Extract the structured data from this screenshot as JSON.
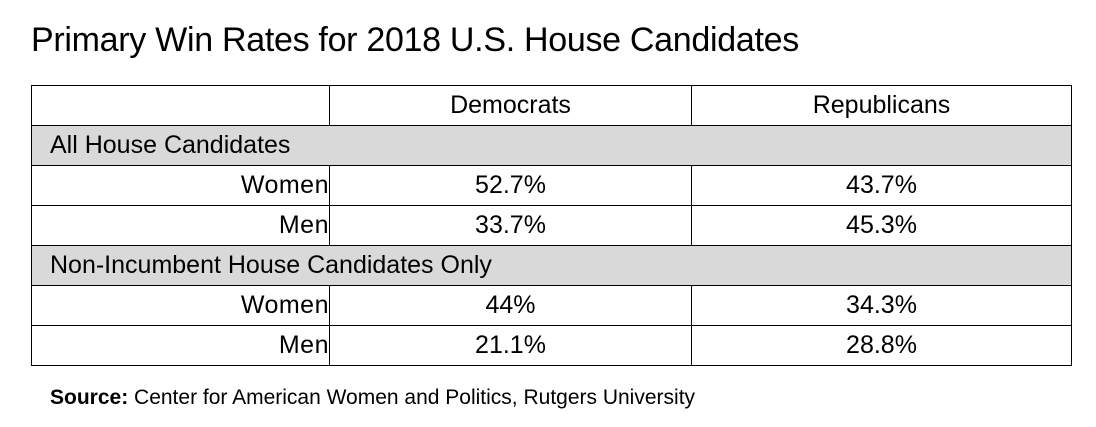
{
  "chart_data": {
    "type": "table",
    "title": "Primary Win Rates for 2018 U.S. House Candidates",
    "columns": [
      "",
      "Democrats",
      "Republicans"
    ],
    "sections": [
      {
        "label": "All House Candidates",
        "rows": [
          {
            "label": "Women",
            "values": [
              "52.7%",
              "43.7%"
            ]
          },
          {
            "label": "Men",
            "values": [
              "33.7%",
              "45.3%"
            ]
          }
        ]
      },
      {
        "label": "Non-Incumbent House Candidates Only",
        "rows": [
          {
            "label": "Women",
            "values": [
              "44%",
              "34.3%"
            ]
          },
          {
            "label": "Men",
            "values": [
              "21.1%",
              "28.8%"
            ]
          }
        ]
      }
    ],
    "source_label": "Source:",
    "source_text": "Center for American Women and Politics, Rutgers University",
    "colors": {
      "section_header_bg": "#d9d9d9",
      "border": "#000000"
    }
  }
}
